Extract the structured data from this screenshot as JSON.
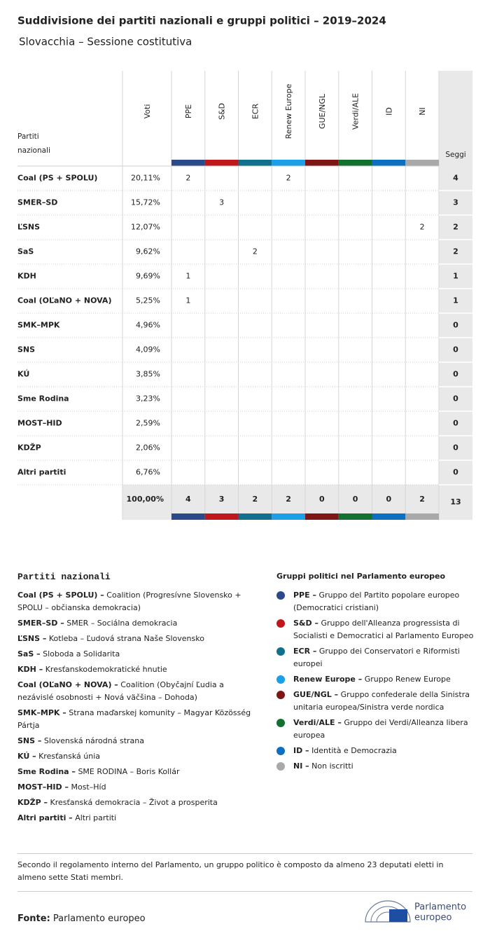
{
  "header": {
    "title": "Suddivisione dei partiti nazionali e gruppi politici – 2019–2024",
    "subtitle": "Slovacchia – Sessione costitutiva"
  },
  "table": {
    "party_header": "Partiti nazionali",
    "votes_header": "Voti",
    "seats_header": "Seggi",
    "groups": [
      {
        "label": "PPE",
        "color": "#2a4a8a"
      },
      {
        "label": "S&D",
        "color": "#c0171c"
      },
      {
        "label": "ECR",
        "color": "#10708e"
      },
      {
        "label": "Renew Europe",
        "color": "#1b9fe8"
      },
      {
        "label": "GUE/NGL",
        "color": "#7d1614"
      },
      {
        "label": "Verdi/ALE",
        "color": "#12712e"
      },
      {
        "label": "ID",
        "color": "#0c6fc0"
      },
      {
        "label": "NI",
        "color": "#a9a9a9"
      }
    ],
    "rows": [
      {
        "party": "Coal (PS + SPOLU)",
        "votes": "20,11%",
        "cells": [
          "2",
          null,
          null,
          "2",
          null,
          null,
          null,
          null
        ],
        "seats": "4"
      },
      {
        "party": "SMER–SD",
        "votes": "15,72%",
        "cells": [
          null,
          "3",
          null,
          null,
          null,
          null,
          null,
          null
        ],
        "seats": "3"
      },
      {
        "party": "ĽSNS",
        "votes": "12,07%",
        "cells": [
          null,
          null,
          null,
          null,
          null,
          null,
          null,
          "2"
        ],
        "seats": "2"
      },
      {
        "party": "SaS",
        "votes": "9,62%",
        "cells": [
          null,
          null,
          "2",
          null,
          null,
          null,
          null,
          null
        ],
        "seats": "2"
      },
      {
        "party": "KDH",
        "votes": "9,69%",
        "cells": [
          "1",
          null,
          null,
          null,
          null,
          null,
          null,
          null
        ],
        "seats": "1"
      },
      {
        "party": "Coal (OĽaNO + NOVA)",
        "votes": "5,25%",
        "cells": [
          "1",
          null,
          null,
          null,
          null,
          null,
          null,
          null
        ],
        "seats": "1"
      },
      {
        "party": "SMK–MPK",
        "votes": "4,96%",
        "cells": [
          null,
          null,
          null,
          null,
          null,
          null,
          null,
          null
        ],
        "seats": "0"
      },
      {
        "party": "SNS",
        "votes": "4,09%",
        "cells": [
          null,
          null,
          null,
          null,
          null,
          null,
          null,
          null
        ],
        "seats": "0"
      },
      {
        "party": "KÚ",
        "votes": "3,85%",
        "cells": [
          null,
          null,
          null,
          null,
          null,
          null,
          null,
          null
        ],
        "seats": "0"
      },
      {
        "party": "Sme Rodina",
        "votes": "3,23%",
        "cells": [
          null,
          null,
          null,
          null,
          null,
          null,
          null,
          null
        ],
        "seats": "0"
      },
      {
        "party": "MOST–HID",
        "votes": "2,59%",
        "cells": [
          null,
          null,
          null,
          null,
          null,
          null,
          null,
          null
        ],
        "seats": "0"
      },
      {
        "party": "KDŽP",
        "votes": "2,06%",
        "cells": [
          null,
          null,
          null,
          null,
          null,
          null,
          null,
          null
        ],
        "seats": "0"
      },
      {
        "party": "Altri partiti",
        "votes": "6,76%",
        "cells": [
          null,
          null,
          null,
          null,
          null,
          null,
          null,
          null
        ],
        "seats": "0"
      }
    ],
    "total": {
      "votes": "100,00%",
      "cells": [
        "4",
        "3",
        "2",
        "2",
        "0",
        "0",
        "0",
        "2"
      ],
      "seats": "13"
    }
  },
  "legend_parties": {
    "title": "Partiti nazionali",
    "items": [
      {
        "abbr": "Coal (PS + SPOLU) –",
        "desc": "Coalition (Progresívne Slovensko + SPOLU – občianska demokracia)"
      },
      {
        "abbr": "SMER–SD –",
        "desc": "SMER – Sociálna demokracia"
      },
      {
        "abbr": "ĽSNS –",
        "desc": "Kotleba – Ľudová strana Naše Slovensko"
      },
      {
        "abbr": "SaS –",
        "desc": "Sloboda a Solidarita"
      },
      {
        "abbr": "KDH –",
        "desc": "Kresťanskodemokratické hnutie"
      },
      {
        "abbr": "Coal (OĽaNO + NOVA) –",
        "desc": "Coalition (Obyčajní Ľudia a nezávislé osobnosti + Nová väčšina – Dohoda)"
      },
      {
        "abbr": "SMK–MPK –",
        "desc": "Strana maďarskej komunity – Magyar Közösség Pártja"
      },
      {
        "abbr": "SNS –",
        "desc": "Slovenská národná strana"
      },
      {
        "abbr": "KÚ –",
        "desc": "Kresťanská únia"
      },
      {
        "abbr": "Sme Rodina –",
        "desc": "SME RODINA – Boris Kollár"
      },
      {
        "abbr": "MOST–HID –",
        "desc": "Most–Híd"
      },
      {
        "abbr": "KDŽP –",
        "desc": "Kresťanská demokracia – Život a prosperita"
      },
      {
        "abbr": "Altri partiti –",
        "desc": "Altri partiti"
      }
    ]
  },
  "legend_groups": {
    "title": "Gruppi politici nel Parlamento europeo",
    "items": [
      {
        "abbr": "PPE –",
        "desc": "Gruppo del Partito popolare europeo (Democratici cristiani)"
      },
      {
        "abbr": "S&D –",
        "desc": "Gruppo dell'Alleanza progressista di Socialisti e Democratici al Parlamento Europeo"
      },
      {
        "abbr": "ECR –",
        "desc": "Gruppo dei Conservatori e Riformisti europei"
      },
      {
        "abbr": "Renew Europe –",
        "desc": "Gruppo Renew Europe"
      },
      {
        "abbr": "GUE/NGL –",
        "desc": "Gruppo confederale della Sinistra unitaria europea/Sinistra verde nordica"
      },
      {
        "abbr": "Verdi/ALE –",
        "desc": "Gruppo dei Verdi/Alleanza libera europea"
      },
      {
        "abbr": "ID –",
        "desc": "Identità e Democrazia"
      },
      {
        "abbr": "NI –",
        "desc": "Non iscritti"
      }
    ]
  },
  "note": "Secondo il regolamento interno del Parlamento, un gruppo politico è composto da almeno 23 deputati eletti in almeno sette Stati membri.",
  "source": {
    "label": "Fonte:",
    "text": "Parlamento europeo"
  },
  "logo": {
    "line1": "Parlamento",
    "line2": "europeo"
  }
}
